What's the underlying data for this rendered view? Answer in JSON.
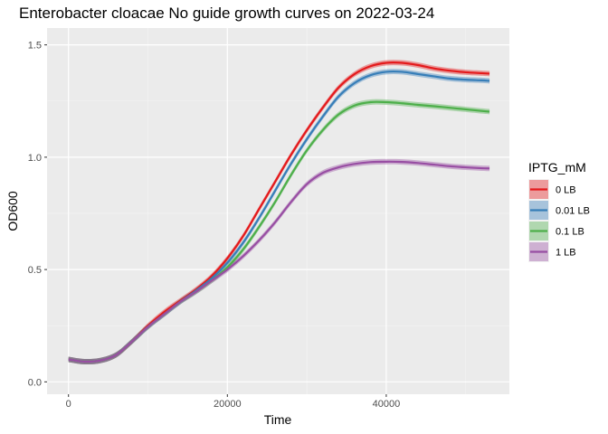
{
  "chart_data": {
    "type": "line",
    "title": "Enterobacter cloacae No guide growth curves on 2022-03-24",
    "xlabel": "Time",
    "ylabel": "OD600",
    "xlim": [
      -2700,
      55500
    ],
    "ylim": [
      -0.055,
      1.575
    ],
    "x_ticks": [
      0,
      20000,
      40000
    ],
    "x_tick_labels": [
      "0",
      "20000",
      "40000"
    ],
    "y_ticks": [
      0.0,
      0.5,
      1.0,
      1.5
    ],
    "y_tick_labels": [
      "0.0",
      "0.5",
      "1.0",
      "1.5"
    ],
    "grid": true,
    "legend": {
      "title": "IPTG_mM",
      "position": "right"
    },
    "series": [
      {
        "name": "0 LB",
        "color": "#e41a1c",
        "x": [
          0,
          2000,
          4000,
          6000,
          8000,
          10000,
          12000,
          14000,
          16000,
          18000,
          20000,
          22000,
          24000,
          26000,
          28000,
          30000,
          32000,
          34000,
          36000,
          38000,
          40000,
          42000,
          44000,
          46000,
          48000,
          50000,
          52000,
          53000
        ],
        "y": [
          0.1,
          0.09,
          0.095,
          0.12,
          0.18,
          0.25,
          0.31,
          0.36,
          0.41,
          0.47,
          0.55,
          0.65,
          0.77,
          0.89,
          1.01,
          1.12,
          1.22,
          1.31,
          1.37,
          1.405,
          1.42,
          1.42,
          1.41,
          1.395,
          1.385,
          1.378,
          1.374,
          1.372
        ]
      },
      {
        "name": "0.01 LB",
        "color": "#377eb8",
        "x": [
          0,
          2000,
          4000,
          6000,
          8000,
          10000,
          12000,
          14000,
          16000,
          18000,
          20000,
          22000,
          24000,
          26000,
          28000,
          30000,
          32000,
          34000,
          36000,
          38000,
          40000,
          42000,
          44000,
          46000,
          48000,
          50000,
          52000,
          53000
        ],
        "y": [
          0.1,
          0.09,
          0.095,
          0.12,
          0.18,
          0.245,
          0.3,
          0.355,
          0.405,
          0.46,
          0.53,
          0.62,
          0.73,
          0.85,
          0.97,
          1.08,
          1.18,
          1.27,
          1.33,
          1.365,
          1.38,
          1.38,
          1.37,
          1.36,
          1.35,
          1.345,
          1.342,
          1.34
        ]
      },
      {
        "name": "0.1 LB",
        "color": "#4daf4a",
        "x": [
          0,
          2000,
          4000,
          6000,
          8000,
          10000,
          12000,
          14000,
          16000,
          18000,
          20000,
          22000,
          24000,
          26000,
          28000,
          30000,
          32000,
          34000,
          36000,
          38000,
          40000,
          42000,
          44000,
          46000,
          48000,
          50000,
          52000,
          53000
        ],
        "y": [
          0.1,
          0.09,
          0.095,
          0.12,
          0.18,
          0.245,
          0.3,
          0.355,
          0.4,
          0.45,
          0.51,
          0.59,
          0.69,
          0.8,
          0.92,
          1.03,
          1.12,
          1.19,
          1.23,
          1.245,
          1.245,
          1.24,
          1.233,
          1.227,
          1.22,
          1.213,
          1.206,
          1.203
        ]
      },
      {
        "name": "1 LB",
        "color": "#984ea3",
        "x": [
          0,
          2000,
          4000,
          6000,
          8000,
          10000,
          12000,
          14000,
          16000,
          18000,
          20000,
          22000,
          24000,
          26000,
          28000,
          30000,
          32000,
          34000,
          36000,
          38000,
          40000,
          42000,
          44000,
          46000,
          48000,
          50000,
          52000,
          53000
        ],
        "y": [
          0.1,
          0.09,
          0.095,
          0.12,
          0.18,
          0.245,
          0.3,
          0.355,
          0.4,
          0.45,
          0.5,
          0.56,
          0.63,
          0.71,
          0.8,
          0.88,
          0.93,
          0.955,
          0.97,
          0.978,
          0.98,
          0.979,
          0.974,
          0.967,
          0.96,
          0.955,
          0.951,
          0.95
        ]
      }
    ]
  }
}
